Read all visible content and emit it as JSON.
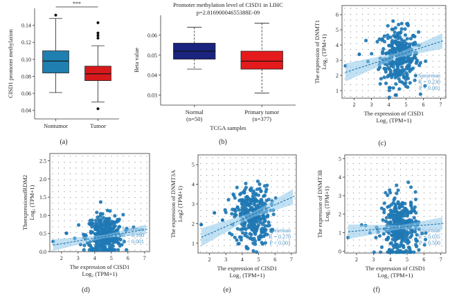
{
  "chart_data": [
    {
      "id": "a",
      "type": "box",
      "panel_label": "(a)",
      "ylabel": "CISD1 promoter methylation",
      "ylim": [
        0.03,
        0.16
      ],
      "yticks": [
        "0.04",
        "0.06",
        "0.08",
        "0.10",
        "0.12",
        "0.14"
      ],
      "significance": "***",
      "boxes": [
        {
          "category": "Nontumor",
          "color": "#1f7fb0",
          "whisker_low": 0.061,
          "q1": 0.084,
          "median": 0.098,
          "q3": 0.11,
          "whisker_high": 0.148,
          "outliers": [
            0.152
          ]
        },
        {
          "category": "Tumor",
          "color": "#d7191c",
          "whisker_low": 0.05,
          "q1": 0.075,
          "median": 0.083,
          "q3": 0.092,
          "whisker_high": 0.116,
          "outliers": [
            0.143,
            0.131,
            0.128,
            0.125,
            0.042
          ]
        }
      ]
    },
    {
      "id": "b",
      "type": "box",
      "panel_label": "(b)",
      "title": "Promoter methylation level of CISD1 in LIHC",
      "subtitle": "p=2.81690004655388E-09",
      "ylabel": "Beta value",
      "xlabel": "TCGA samples",
      "ylim": [
        0.025,
        0.07
      ],
      "yticks": [
        "0.03",
        "0.04",
        "0.05",
        "0.06"
      ],
      "boxes": [
        {
          "category": "Normal",
          "n": "(n=50)",
          "color": "#1a237e",
          "whisker_low": 0.043,
          "q1": 0.048,
          "median": 0.052,
          "q3": 0.056,
          "whisker_high": 0.064
        },
        {
          "category": "Primary tumor",
          "n": "(n=377)",
          "color": "#e41a1c",
          "whisker_low": 0.031,
          "q1": 0.043,
          "median": 0.047,
          "q3": 0.052,
          "whisker_high": 0.066
        }
      ]
    },
    {
      "id": "c",
      "type": "scatter",
      "panel_label": "(c)",
      "ylabel1": "The expression of DNMT1",
      "ylabel2": "Log₂ (TPM+1)",
      "xlabel1": "The expression of CISD1",
      "xlabel2": "Log₂ (TPM+1)",
      "xlim": [
        1.3,
        7.3
      ],
      "ylim": [
        0.5,
        6.6
      ],
      "xticks": [
        2,
        3,
        4,
        5,
        6,
        7
      ],
      "yticks": [
        1,
        2,
        3,
        4,
        5,
        6
      ],
      "fit": {
        "x1": 1.5,
        "y1": 2.2,
        "x2": 7.2,
        "y2": 4.3,
        "band": 0.45
      },
      "annotation": [
        "Spearman",
        "R = 0.230",
        "P < 0.001"
      ],
      "cluster": {
        "cx": 4.6,
        "cy": 3.2,
        "sx": 0.55,
        "sy": 0.95,
        "n": 330
      }
    },
    {
      "id": "d",
      "type": "scatter",
      "panel_label": "(d)",
      "ylabel1": "TheexpressionofRDM2",
      "ylabel2": "Log₂ (TPM+1)",
      "xlabel1": "The expression of CISD1",
      "xlabel2": "Log₂ (TPM+1)",
      "xlim": [
        1.3,
        7.3
      ],
      "ylim": [
        0,
        2.7
      ],
      "xticks": [
        2,
        3,
        4,
        5,
        6,
        7
      ],
      "yticks": [
        "0.0",
        "0.5",
        "1.0",
        "1.5",
        "2.0",
        "2.5"
      ],
      "fit": {
        "x1": 1.5,
        "y1": 0.18,
        "x2": 7.2,
        "y2": 0.62,
        "band": 0.12
      },
      "annotation": [
        "Spearman",
        "R = 0.160",
        "P < 0.001"
      ],
      "cluster": {
        "cx": 4.6,
        "cy": 0.45,
        "sx": 0.55,
        "sy": 0.28,
        "n": 330
      }
    },
    {
      "id": "e",
      "type": "scatter",
      "panel_label": "(e)",
      "ylabel1": "The expression of DNMT3A",
      "ylabel2": "Log2 (TPM+1)",
      "xlabel1": "The expression of CISD1",
      "xlabel2": "Log₂ (TPM+1)",
      "xlim": [
        1.3,
        7.3
      ],
      "ylim": [
        0.5,
        5.5
      ],
      "xticks": [
        2,
        3,
        4,
        5,
        6,
        7
      ],
      "yticks": [
        1,
        2,
        3,
        4,
        5
      ],
      "fit": {
        "x1": 1.5,
        "y1": 1.3,
        "x2": 7.2,
        "y2": 3.4,
        "band": 0.35
      },
      "annotation": [
        "Spearman",
        "R = 0.270",
        "P < 0.001"
      ],
      "cluster": {
        "cx": 4.6,
        "cy": 2.4,
        "sx": 0.55,
        "sy": 0.75,
        "n": 330
      }
    },
    {
      "id": "f",
      "type": "scatter",
      "panel_label": "(f)",
      "ylabel1": "The expression of DNMT3B",
      "ylabel2": "Log₂ (TPM+1)",
      "xlabel1": "The expression of CISD1",
      "xlabel2": "Log₂ (TPM+1)",
      "xlim": [
        1.3,
        7.3
      ],
      "ylim": [
        -0.1,
        5.2
      ],
      "xticks": [
        2,
        3,
        4,
        5,
        6,
        7
      ],
      "yticks": [
        0,
        1,
        2,
        3,
        4,
        5
      ],
      "fit": {
        "x1": 1.5,
        "y1": 1.05,
        "x2": 7.2,
        "y2": 1.5,
        "band": 0.3
      },
      "annotation": [
        "Spearman",
        "R = 0.035",
        "P = 0.500"
      ],
      "cluster": {
        "cx": 4.6,
        "cy": 1.25,
        "sx": 0.55,
        "sy": 0.85,
        "n": 330
      }
    }
  ]
}
